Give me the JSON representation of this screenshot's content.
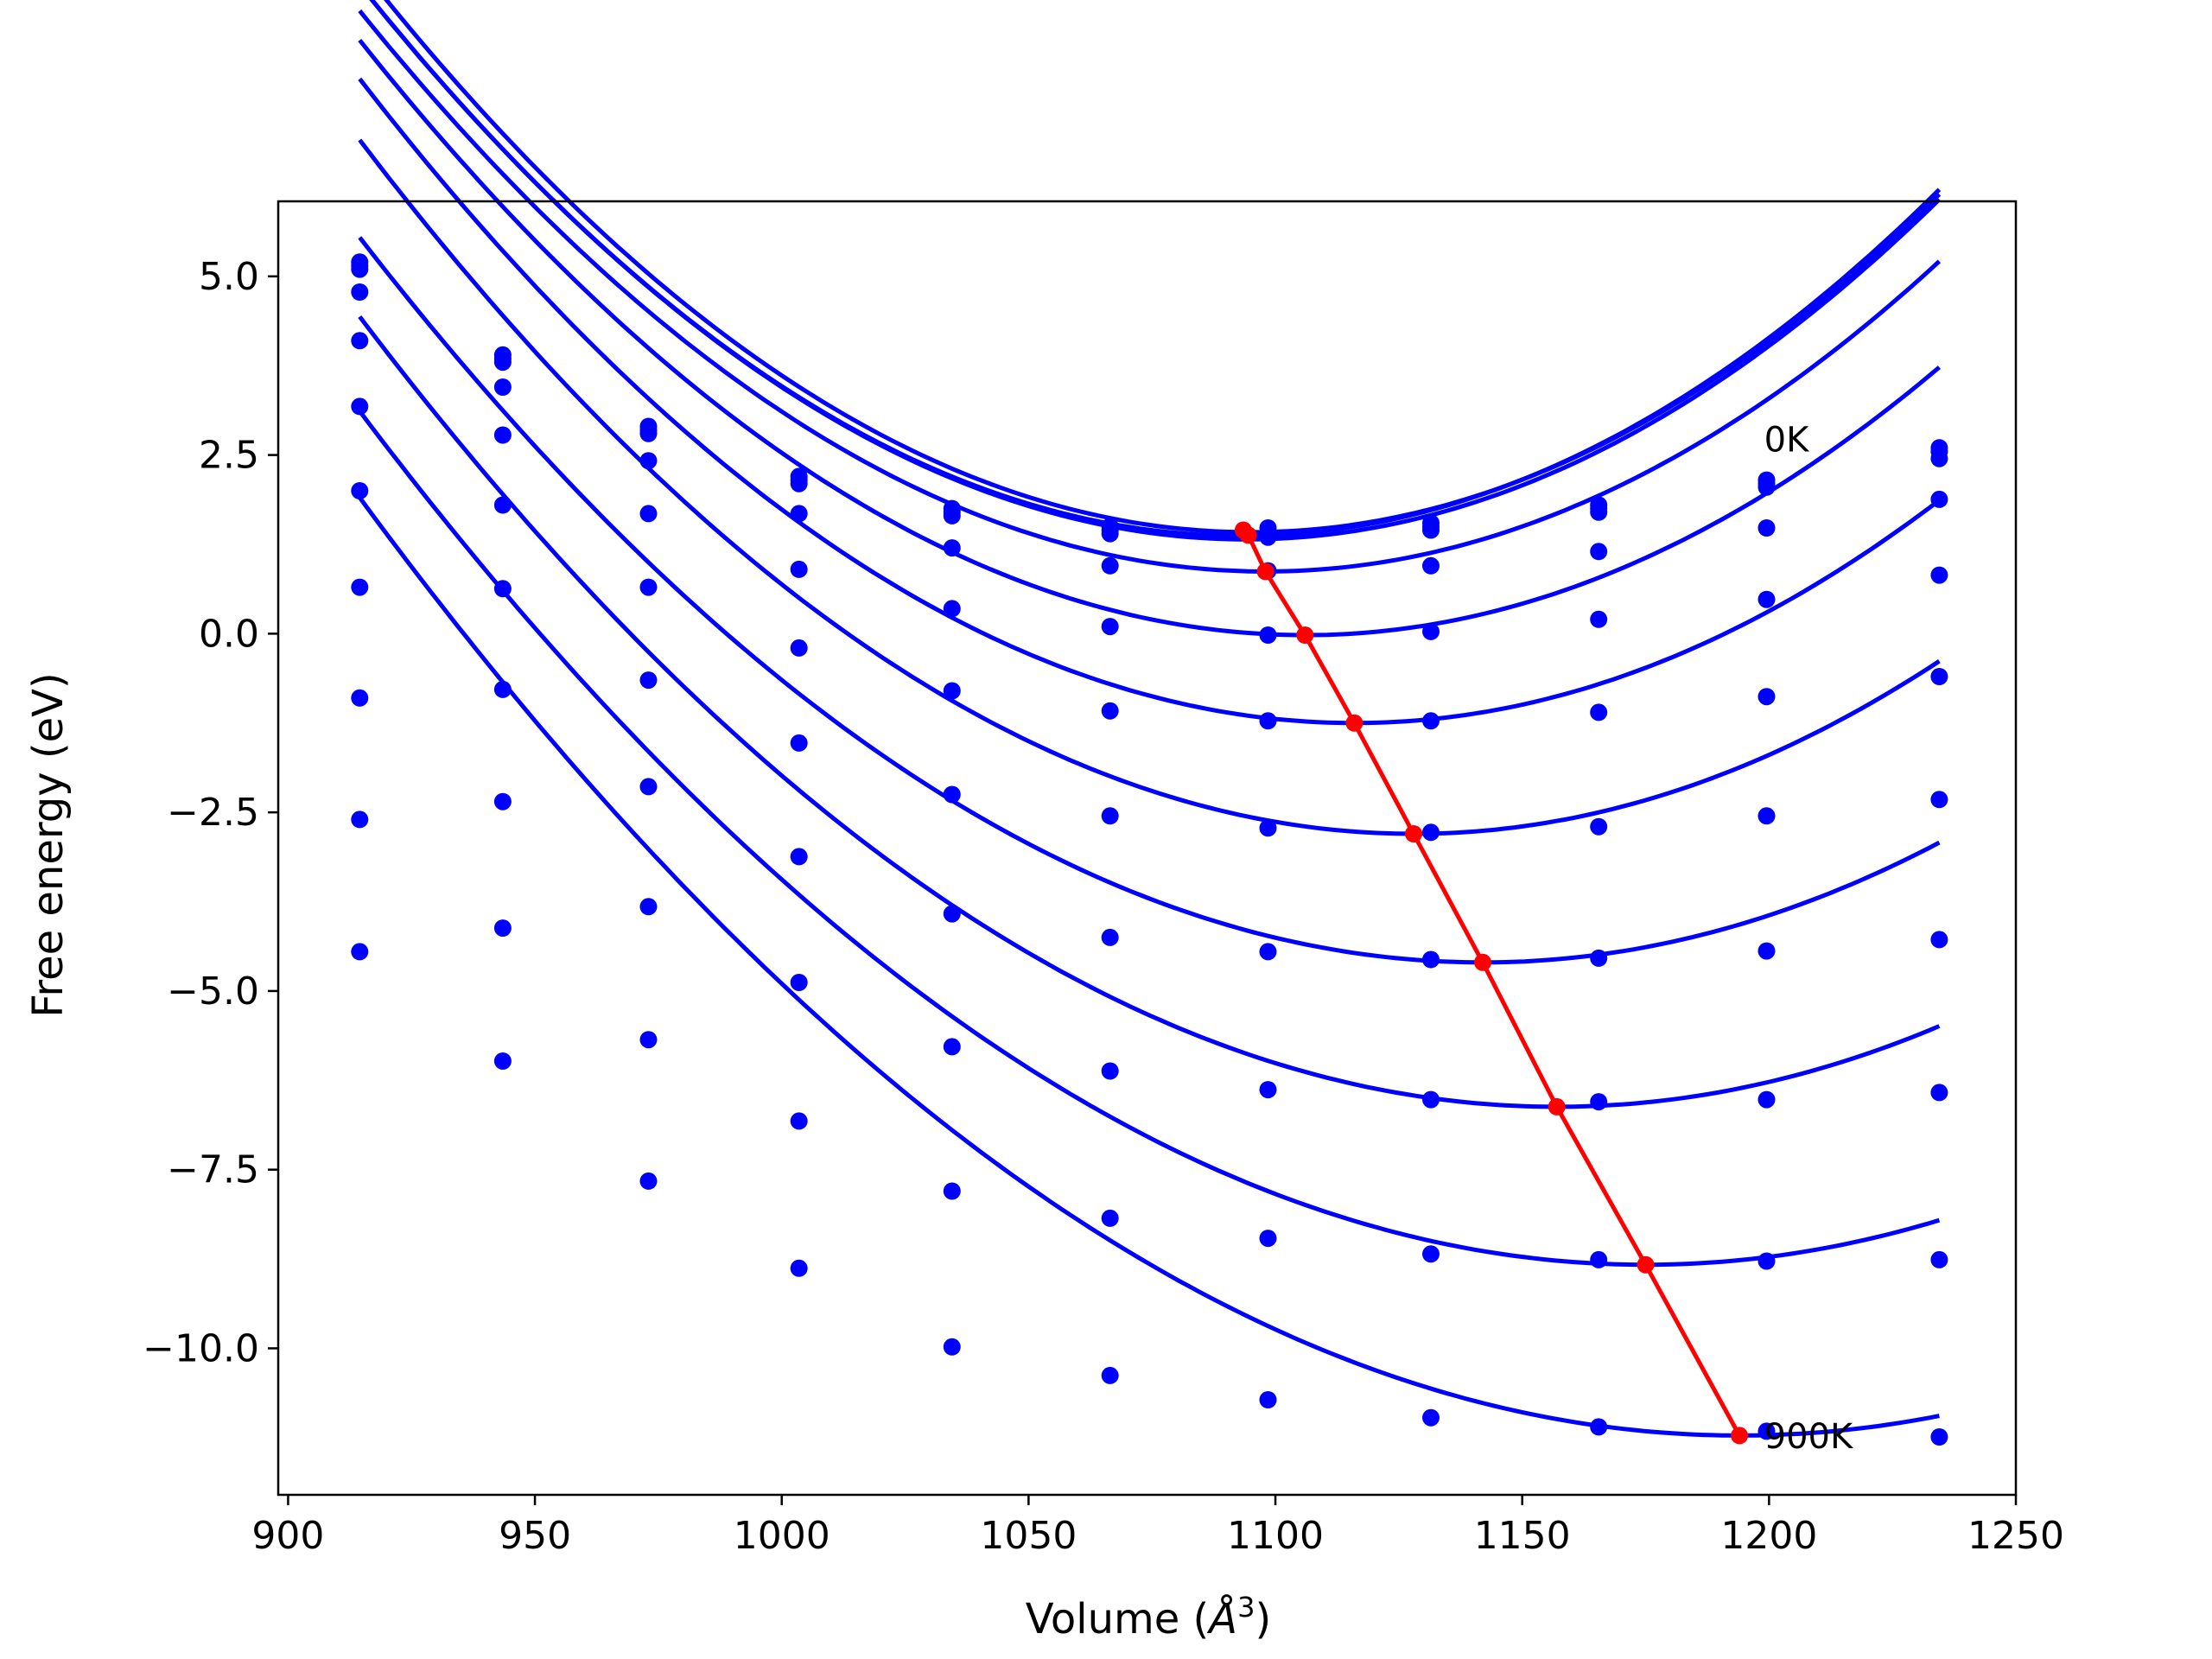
{
  "chart_data": {
    "type": "line",
    "title": "",
    "xlabel": "Volume (",
    "xlabel_unit": "Å",
    "xlabel_exp": "3",
    "xlabel_close": ")",
    "ylabel": "Free energy (eV)",
    "xlim": [
      898,
      1250
    ],
    "ylim": [
      -12.05,
      6.05
    ],
    "xticks": [
      900,
      950,
      1000,
      1050,
      1100,
      1150,
      1200,
      1250
    ],
    "xtick_labels": [
      "900",
      "950",
      "1000",
      "1050",
      "1100",
      "1150",
      "1200",
      "1250"
    ],
    "yticks": [
      5.0,
      2.5,
      0.0,
      -2.5,
      -5.0,
      -7.5,
      -10.0
    ],
    "ytick_labels": [
      "5.0",
      "2.5",
      "0.0",
      "−2.5",
      "−5.0",
      "−7.5",
      "−10.0"
    ],
    "grid": false,
    "colors": {
      "data": "#0000ff",
      "min_line": "#ff0000"
    },
    "x": [
      914.5,
      943.5,
      973.0,
      1003.5,
      1034.5,
      1066.5,
      1098.5,
      1131.5,
      1165.5,
      1199.5,
      1234.5
    ],
    "series": [
      {
        "values": [
          5.2,
          3.9,
          2.9,
          2.2,
          1.75,
          1.5,
          1.48,
          1.55,
          1.8,
          2.15,
          2.6
        ]
      },
      {
        "values": [
          5.15,
          3.85,
          2.85,
          2.15,
          1.7,
          1.45,
          1.4,
          1.5,
          1.75,
          2.1,
          2.55
        ]
      },
      {
        "values": [
          5.1,
          3.8,
          2.8,
          2.1,
          1.65,
          1.4,
          1.35,
          1.45,
          1.7,
          2.05,
          2.45
        ]
      },
      {
        "values": [
          4.78,
          3.45,
          2.42,
          1.68,
          1.2,
          0.95,
          0.88,
          0.95,
          1.15,
          1.48,
          1.88
        ]
      },
      {
        "values": [
          4.1,
          2.78,
          1.68,
          0.9,
          0.35,
          0.1,
          -0.02,
          0.03,
          0.2,
          0.48,
          0.82
        ]
      },
      {
        "values": [
          3.18,
          1.8,
          0.65,
          -0.2,
          -0.8,
          -1.08,
          -1.22,
          -1.22,
          -1.1,
          -0.88,
          -0.6
        ]
      },
      {
        "values": [
          2.0,
          0.63,
          -0.65,
          -1.53,
          -2.25,
          -2.55,
          -2.72,
          -2.78,
          -2.7,
          -2.55,
          -2.32
        ]
      },
      {
        "values": [
          0.65,
          -0.78,
          -2.14,
          -3.12,
          -3.92,
          -4.25,
          -4.45,
          -4.56,
          -4.54,
          -4.44,
          -4.28
        ]
      },
      {
        "values": [
          -0.9,
          -2.35,
          -3.82,
          -4.88,
          -5.78,
          -6.12,
          -6.38,
          -6.52,
          -6.55,
          -6.52,
          -6.42
        ]
      },
      {
        "values": [
          -2.6,
          -4.12,
          -5.68,
          -6.82,
          -7.8,
          -8.18,
          -8.46,
          -8.68,
          -8.76,
          -8.78,
          -8.76
        ]
      },
      {
        "values": [
          -4.45,
          -5.98,
          -7.66,
          -8.88,
          -9.98,
          -10.38,
          -10.72,
          -10.97,
          -11.1,
          -11.16,
          -11.24
        ]
      }
    ],
    "fits": [
      {
        "v0": 1095,
        "e0": 1.42,
        "a": 0.000243
      },
      {
        "v0": 1093,
        "e0": 1.37,
        "a": 0.000242
      },
      {
        "v0": 1094,
        "e0": 1.32,
        "a": 0.000241
      },
      {
        "v0": 1098,
        "e0": 0.87,
        "a": 0.000233
      },
      {
        "v0": 1106,
        "e0": -0.02,
        "a": 0.000227
      },
      {
        "v0": 1116,
        "e0": -1.25,
        "a": 0.000222
      },
      {
        "v0": 1128,
        "e0": -2.8,
        "a": 0.000213
      },
      {
        "v0": 1142,
        "e0": -4.6,
        "a": 0.000196
      },
      {
        "v0": 1157,
        "e0": -6.62,
        "a": 0.000188
      },
      {
        "v0": 1175,
        "e0": -8.83,
        "a": 0.000176
      },
      {
        "v0": 1194,
        "e0": -11.22,
        "a": 0.000168
      }
    ],
    "minimum_line": {
      "x": [
        1093.5,
        1094.5,
        1098.0,
        1106.0,
        1116.0,
        1128.0,
        1142.0,
        1157.0,
        1175.0,
        1194.0
      ],
      "y": [
        1.45,
        1.38,
        0.87,
        -0.02,
        -1.25,
        -2.8,
        -4.6,
        -6.62,
        -8.83,
        -11.22
      ]
    },
    "annotations": [
      {
        "text": "0K",
        "x": 1199,
        "y": 2.55
      },
      {
        "text": "900K",
        "x": 1199,
        "y": -11.4
      }
    ]
  }
}
